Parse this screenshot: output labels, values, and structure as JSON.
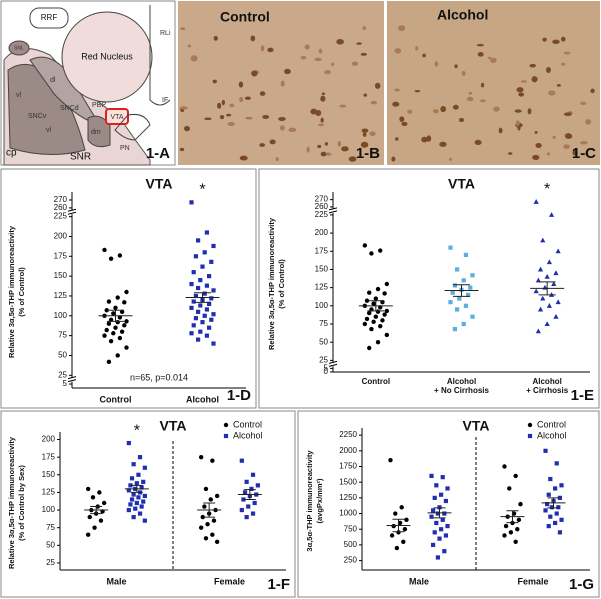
{
  "diagram": {
    "labels": [
      "RRF",
      "Red Nucleus",
      "RLi",
      "IF",
      "PBP",
      "VTA",
      "SNL",
      "dl",
      "vl",
      "SNCd",
      "SNCv",
      "vl",
      "dm",
      "PN",
      "SNR",
      "cp"
    ],
    "panel": "1-A"
  },
  "micrographs": [
    {
      "label": "Control",
      "panel": "1-B"
    },
    {
      "label": "Alcohol",
      "panel": "1-C"
    }
  ],
  "chart_data": [
    {
      "type": "dotplot",
      "title": "VTA",
      "panel": "1-D",
      "ylabel": [
        "Relative 3α,5α-THP immunoreactivity",
        "(% of Control)"
      ],
      "note": "n=65, p=0.014",
      "categories": [
        "Control",
        "Alcohol"
      ],
      "ylim": [
        0,
        275
      ],
      "ybreaks": [
        [
          5,
          25
        ],
        [
          225,
          260
        ]
      ],
      "yticks": [
        5,
        25,
        50,
        75,
        100,
        125,
        150,
        175,
        200,
        225,
        260,
        270
      ],
      "groups": [
        {
          "color": "#000000",
          "marker": "circle",
          "mean": 100,
          "sem": 7,
          "values": [
            183,
            176,
            172,
            130,
            123,
            118,
            117,
            110,
            107,
            105,
            103,
            100,
            98,
            95,
            93,
            92,
            90,
            88,
            85,
            82,
            80,
            78,
            75,
            72,
            68,
            60,
            50,
            42
          ]
        },
        {
          "color": "#1f2fb0",
          "marker": "square",
          "mean": 123,
          "sem": 6,
          "annotation": "*",
          "values": [
            267,
            205,
            195,
            188,
            180,
            175,
            168,
            162,
            155,
            150,
            145,
            140,
            138,
            135,
            132,
            128,
            125,
            122,
            120,
            118,
            115,
            113,
            110,
            108,
            105,
            102,
            100,
            97,
            95,
            92,
            88,
            85,
            80,
            78,
            75,
            70,
            65
          ]
        }
      ]
    },
    {
      "type": "dotplot",
      "title": "VTA",
      "panel": "1-E",
      "ylabel": [
        "Relative 3α,5α-THP immunoreactivity",
        "(% of Control)"
      ],
      "categories": [
        [
          "Control"
        ],
        [
          "Alcohol",
          "+ No Cirrhosis"
        ],
        [
          "Alcohol",
          "+ Cirrhosis"
        ]
      ],
      "ylim": [
        0,
        275
      ],
      "ybreaks": [
        [
          5,
          25
        ],
        [
          225,
          260
        ]
      ],
      "yticks": [
        0,
        5,
        25,
        50,
        75,
        100,
        125,
        150,
        175,
        200,
        225,
        260,
        270
      ],
      "groups": [
        {
          "color": "#000000",
          "marker": "circle",
          "mean": 100,
          "sem": 7,
          "values": [
            183,
            176,
            172,
            130,
            123,
            118,
            117,
            110,
            107,
            105,
            103,
            100,
            98,
            95,
            93,
            92,
            90,
            88,
            85,
            82,
            80,
            78,
            75,
            72,
            68,
            60,
            50,
            42
          ]
        },
        {
          "color": "#5aaee0",
          "marker": "square",
          "mean": 121,
          "sem": 8,
          "values": [
            180,
            170,
            150,
            142,
            135,
            128,
            125,
            122,
            118,
            115,
            110,
            105,
            100,
            95,
            85,
            75,
            68
          ]
        },
        {
          "color": "#1f2fb0",
          "marker": "triangle",
          "mean": 124,
          "sem": 9,
          "annotation": "*",
          "values": [
            267,
            250,
            190,
            175,
            160,
            150,
            145,
            140,
            135,
            130,
            125,
            120,
            115,
            110,
            105,
            100,
            95,
            85,
            75,
            65
          ]
        }
      ]
    },
    {
      "type": "grouped_dotplot",
      "title": "VTA",
      "panel": "1-F",
      "ylabel": [
        "Relative 3α,5α-THP immunoreactivity",
        "(% of Control by Sex)"
      ],
      "categories": [
        "Male",
        "Female"
      ],
      "ylim": [
        15,
        205
      ],
      "yticks": [
        25,
        50,
        75,
        100,
        125,
        150,
        175,
        200
      ],
      "annotations": [
        {
          "text": "*",
          "series": 1,
          "category": 0
        }
      ],
      "series": [
        {
          "name": "Control",
          "color": "#000000",
          "marker": "circle",
          "mean": [
            100,
            100
          ],
          "sem": [
            5,
            10
          ],
          "values": [
            [
              130,
              125,
              118,
              110,
              105,
              100,
              98,
              95,
              90,
              85,
              75,
              65
            ],
            [
              175,
              170,
              130,
              120,
              115,
              105,
              100,
              95,
              90,
              85,
              80,
              75,
              65,
              60,
              55
            ]
          ]
        },
        {
          "name": "Alcohol",
          "color": "#1f2fb0",
          "marker": "square",
          "mean": [
            130,
            122
          ],
          "sem": [
            5,
            7
          ],
          "values": [
            [
              195,
              175,
              165,
              160,
              150,
              145,
              140,
              138,
              135,
              132,
              130,
              128,
              125,
              122,
              120,
              118,
              115,
              112,
              110,
              108,
              105,
              102,
              100,
              95,
              90,
              85
            ],
            [
              170,
              150,
              140,
              135,
              130,
              125,
              122,
              120,
              115,
              110,
              105,
              100,
              95,
              90
            ]
          ]
        }
      ]
    },
    {
      "type": "grouped_dotplot",
      "title": "VTA",
      "panel": "1-G",
      "ylabel": [
        "3α,5α-THP immunoreactivity",
        "(avgPx/mm²)"
      ],
      "categories": [
        "Male",
        "Female"
      ],
      "ylim": [
        100,
        2300
      ],
      "yticks": [
        250,
        500,
        750,
        1000,
        1250,
        1500,
        1750,
        2000,
        2250
      ],
      "series": [
        {
          "name": "Control",
          "color": "#000000",
          "marker": "circle",
          "mean": [
            810,
            950
          ],
          "sem": [
            100,
            95
          ],
          "values": [
            [
              1850,
              1100,
              1000,
              900,
              850,
              800,
              750,
              700,
              650,
              550,
              450
            ],
            [
              1750,
              1600,
              1400,
              1150,
              1000,
              950,
              900,
              850,
              800,
              750,
              700,
              650,
              550
            ]
          ]
        },
        {
          "name": "Alcohol",
          "color": "#1f2fb0",
          "marker": "square",
          "mean": [
            1010,
            1170
          ],
          "sem": [
            80,
            80
          ],
          "values": [
            [
              1600,
              1580,
              1450,
              1400,
              1300,
              1250,
              1200,
              1100,
              1050,
              1000,
              1000,
              950,
              900,
              850,
              800,
              750,
              700,
              650,
              600,
              500,
              400,
              300
            ],
            [
              2000,
              1800,
              1550,
              1450,
              1400,
              1300,
              1250,
              1200,
              1150,
              1100,
              1100,
              1050,
              1000,
              950,
              900,
              850,
              800,
              700
            ]
          ]
        }
      ]
    }
  ]
}
